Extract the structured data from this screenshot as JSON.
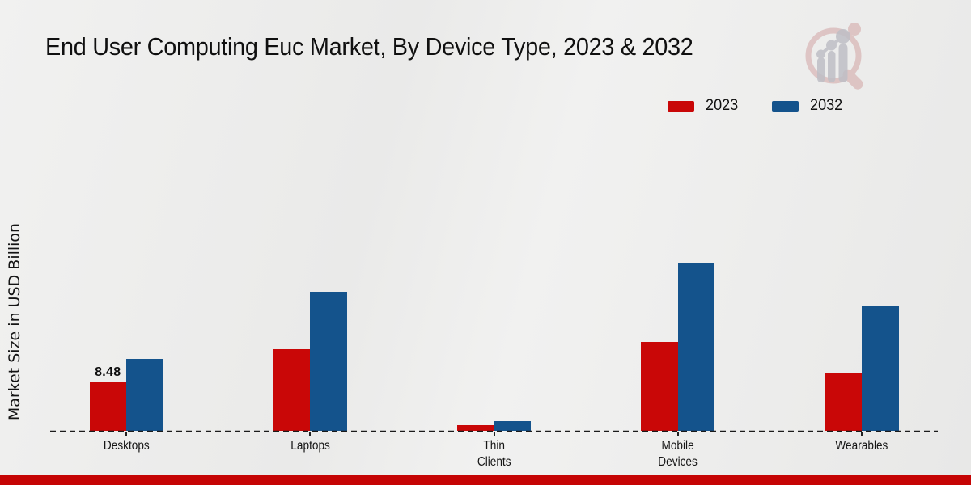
{
  "title": "End User Computing Euc Market, By Device Type, 2023 & 2032",
  "y_axis_label": "Market Size in USD Billion",
  "colors": {
    "series_2023": "#c90707",
    "series_2032": "#14538c",
    "footer_strip": "#c50404",
    "baseline": "#1b1b1b",
    "logo_ring": "#cf9d9d",
    "logo_bars": "#bfbfc6"
  },
  "logo": {
    "icon": "magnifier-bar-chart-watermark"
  },
  "chart_data": {
    "type": "bar",
    "title": "End User Computing Euc Market, By Device Type, 2023 & 2032",
    "categories": [
      "Desktops",
      "Laptops",
      "Thin Clients",
      "Mobile Devices",
      "Wearables"
    ],
    "tick_label_lines": [
      [
        "Desktops"
      ],
      [
        "Laptops"
      ],
      [
        "Thin",
        "Clients"
      ],
      [
        "Mobile",
        "Devices"
      ],
      [
        "Wearables"
      ]
    ],
    "series": [
      {
        "name": "2023",
        "color": "#c90707",
        "values": [
          8.48,
          14.3,
          1.0,
          15.5,
          10.2
        ]
      },
      {
        "name": "2032",
        "color": "#14538c",
        "values": [
          12.6,
          24.3,
          1.7,
          29.4,
          21.8
        ]
      }
    ],
    "data_labels": [
      {
        "category": "Desktops",
        "series": "2023",
        "text": "8.48"
      }
    ],
    "xlabel": "",
    "ylabel": "Market Size in USD Billion",
    "ylim": [
      0,
      30
    ],
    "grid": false,
    "axis_style": "dashed-baseline-only",
    "legend_position": "top-right"
  }
}
